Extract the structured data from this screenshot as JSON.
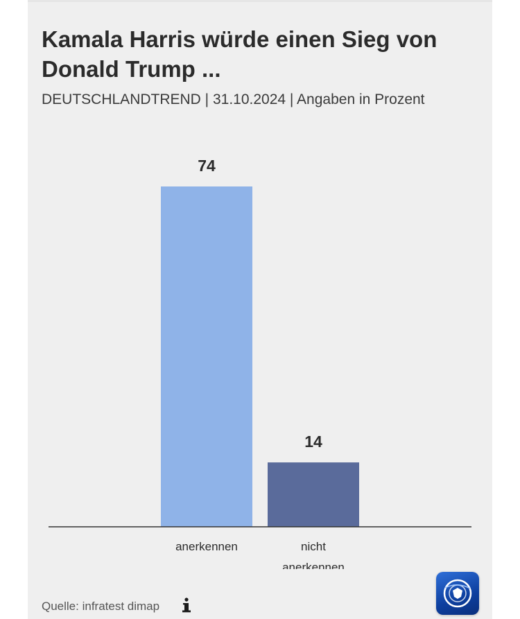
{
  "header": {
    "title": "Kamala Harris würde einen Sieg von Donald Trump ...",
    "subtitle": "DEUTSCHLANDTREND | 31.10.2024 | Angaben in Prozent"
  },
  "footer": {
    "source": "Quelle: infratest dimap",
    "info_icon": "info-icon",
    "logo": "tagesschau-logo"
  },
  "colors": {
    "card_background": "#efefef",
    "text": "#2b2b2b",
    "baseline": "#333333"
  },
  "chart_data": {
    "type": "bar",
    "title": "Kamala Harris würde einen Sieg von Donald Trump ...",
    "subtitle": "DEUTSCHLANDTREND | 31.10.2024 | Angaben in Prozent",
    "categories": [
      "anerkennen",
      "nicht anerkennen"
    ],
    "values": [
      74,
      14
    ],
    "bar_colors": [
      "#8fb3e8",
      "#5a6b9b"
    ],
    "ylim": [
      0,
      74
    ],
    "grid": false,
    "legend": "none"
  }
}
